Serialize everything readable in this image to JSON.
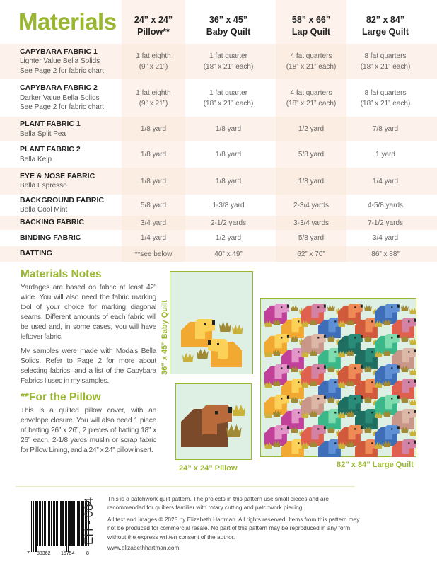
{
  "title": "Materials",
  "columns": [
    {
      "size": "24” x 24”",
      "name": "Pillow**"
    },
    {
      "size": "36” x 45”",
      "name": "Baby Quilt"
    },
    {
      "size": "58” x 66”",
      "name": "Lap Quilt"
    },
    {
      "size": "82” x 84”",
      "name": "Large Quilt"
    }
  ],
  "rows": [
    {
      "name": "CAPYBARA FABRIC 1",
      "sub": [
        "Lighter Value Bella Solids",
        "See Page 2 for fabric chart."
      ],
      "values": [
        [
          "1 fat eighth",
          "(9” x 21”)"
        ],
        [
          "1 fat quarter",
          "(18” x 21” each)"
        ],
        [
          "4 fat quarters",
          "(18” x 21” each)"
        ],
        [
          "8 fat quarters",
          "(18” x 21” each)"
        ]
      ]
    },
    {
      "name": "CAPYBARA FABRIC 2",
      "sub": [
        "Darker Value Bella Solids",
        "See Page 2 for fabric chart."
      ],
      "values": [
        [
          "1 fat eighth",
          "(9” x 21”)"
        ],
        [
          "1 fat quarter",
          "(18” x 21” each)"
        ],
        [
          "4 fat quarters",
          "(18” x 21” each)"
        ],
        [
          "8 fat quarters",
          "(18” x 21” each)"
        ]
      ]
    },
    {
      "name": "PLANT FABRIC 1",
      "sub": [
        "Bella Split Pea"
      ],
      "values": [
        [
          "1/8 yard"
        ],
        [
          "1/8 yard"
        ],
        [
          "1/2 yard"
        ],
        [
          "7/8 yard"
        ]
      ]
    },
    {
      "name": "PLANT FABRIC 2",
      "sub": [
        "Bella Kelp"
      ],
      "values": [
        [
          "1/8 yard"
        ],
        [
          "1/8 yard"
        ],
        [
          "5/8 yard"
        ],
        [
          "1 yard"
        ]
      ]
    },
    {
      "name": "EYE & NOSE FABRIC",
      "sub": [
        "Bella Espresso"
      ],
      "values": [
        [
          "1/8 yard"
        ],
        [
          "1/8 yard"
        ],
        [
          "1/8 yard"
        ],
        [
          "1/4 yard"
        ]
      ]
    },
    {
      "name": "BACKGROUND FABRIC",
      "sub": [
        "Bella Cool Mint"
      ],
      "values": [
        [
          "5/8 yard"
        ],
        [
          "1-3/8 yard"
        ],
        [
          "2-3/4 yards"
        ],
        [
          "4-5/8 yards"
        ]
      ]
    },
    {
      "name": "BACKING FABRIC",
      "sub": [],
      "values": [
        [
          "3/4 yard"
        ],
        [
          "2-1/2 yards"
        ],
        [
          "3-3/4 yards"
        ],
        [
          "7-1/2 yards"
        ]
      ]
    },
    {
      "name": "BINDING FABRIC",
      "sub": [],
      "values": [
        [
          "1/4 yard"
        ],
        [
          "1/2 yard"
        ],
        [
          "5/8 yard"
        ],
        [
          "3/4 yard"
        ]
      ]
    },
    {
      "name": "BATTING",
      "sub": [],
      "values": [
        [
          "**see below"
        ],
        [
          "40” x 49”"
        ],
        [
          "62” x 70”"
        ],
        [
          "86” x 88”"
        ]
      ]
    }
  ],
  "notes": {
    "heading": "Materials Notes",
    "p1": "Yardages are based on fabric at least 42” wide. You will also need the fabric marking tool of your choice for marking diagonal seams. Different amounts of each fabric will be used and, in some cases, you will have leftover fabric.",
    "p2": "My samples were made with Moda’s Bella Solids. Refer to Page 2 for more about selecting fabrics, and a list of the Capybara Fabrics I used in my samples.",
    "pillow_heading": "**For the Pillow",
    "p3": "This is a quilted pillow cover, with an envelope closure. You will also need  1 piece of batting 26” x 26”, 2 pieces of batting 18” x 26” each, 2-1/8 yards muslin or scrap fabric for Pillow Lining, and a 24” x 24” pillow insert."
  },
  "images": {
    "baby_label": "36” x 45” Baby Quilt",
    "pillow_label": "24” x 24” Pillow",
    "large_label": "82” x 84” Large Quilt",
    "background_color": "#deefe4",
    "accent": "#9ab732",
    "capybara_colors": [
      [
        "#c0409a",
        "#e394c8"
      ],
      [
        "#c9978a",
        "#ddb8a8"
      ],
      [
        "#d25a3c",
        "#ee8a55"
      ],
      [
        "#3bb88a",
        "#7fdcae"
      ],
      [
        "#f2a931",
        "#fbd257"
      ],
      [
        "#e0604f",
        "#d283a5"
      ],
      [
        "#1e6e62",
        "#2a8c78"
      ],
      [
        "#3f6eb8",
        "#5f90d6"
      ],
      [
        "#7a4a2a",
        "#b86a3a"
      ]
    ],
    "plant_colors": [
      "#c9b13a",
      "#a08a35"
    ]
  },
  "footer": {
    "code": "EH - 084",
    "barcode_digits": [
      "7",
      "88362",
      "15754",
      "8"
    ],
    "p1": "This is a patchwork quilt pattern. The projects in this pattern use small pieces and are recommended for quilters familiar with rotary cutting and patchwork piecing.",
    "p2": "All text and images © 2025 by Elizabeth Hartman. All rights reserved. Items from this pattern may not be produced for commercial resale. No part of this pattern may be reproduced in any form without the express written consent of the author.",
    "url": "www.elizabethhartman.com"
  }
}
